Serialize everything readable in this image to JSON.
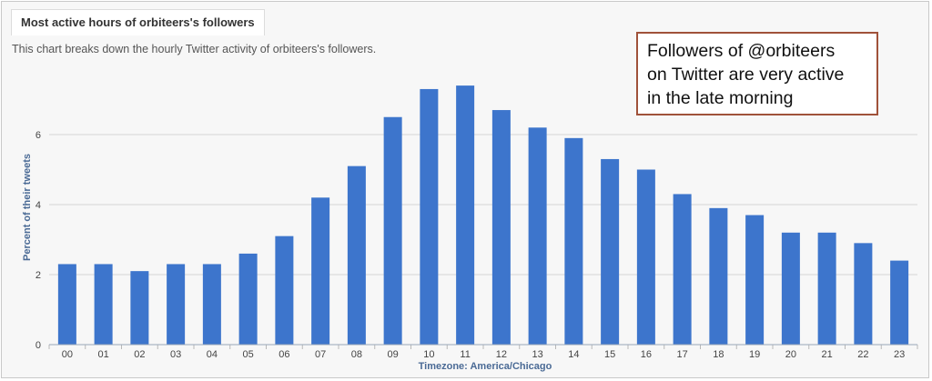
{
  "header": {
    "title": "Most active hours of orbiteers's followers",
    "subtitle": "This chart breaks down the hourly Twitter activity of orbiteers's followers."
  },
  "callout": {
    "lines": [
      "Followers of @orbiteers",
      "on Twitter are very active",
      "in the late morning"
    ]
  },
  "colors": {
    "bar": "#3d75cc",
    "grid": "#d6d6d6",
    "callout_border": "#a0523a"
  },
  "chart_data": {
    "type": "bar",
    "title": "Most active hours of orbiteers's followers",
    "xlabel": "Timezone: America/Chicago",
    "ylabel": "Percent of their tweets",
    "ylim": [
      0,
      8
    ],
    "yticks": [
      0,
      2,
      4,
      6
    ],
    "grid": true,
    "categories": [
      "00",
      "01",
      "02",
      "03",
      "04",
      "05",
      "06",
      "07",
      "08",
      "09",
      "10",
      "11",
      "12",
      "13",
      "14",
      "15",
      "16",
      "17",
      "18",
      "19",
      "20",
      "21",
      "22",
      "23"
    ],
    "values": [
      2.3,
      2.3,
      2.1,
      2.3,
      2.3,
      2.6,
      3.1,
      4.2,
      5.1,
      6.5,
      7.3,
      7.4,
      6.7,
      6.2,
      5.9,
      5.3,
      5.0,
      4.3,
      3.9,
      3.7,
      3.2,
      3.2,
      2.9,
      2.4
    ]
  }
}
